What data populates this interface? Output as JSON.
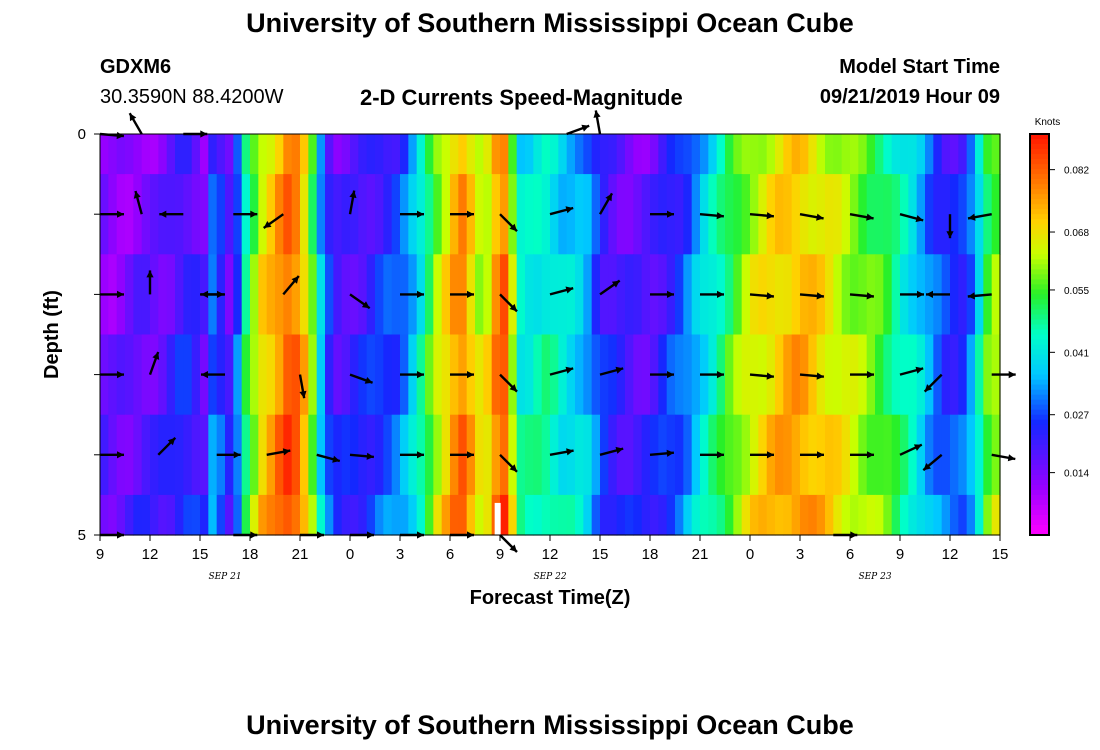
{
  "header": {
    "title": "University of Southern Mississippi Ocean Cube",
    "station_id": "GDXM6",
    "station_coords": "30.3590N 88.4200W",
    "plot_title": "2-D Currents Speed-Magnitude",
    "model_start_label": "Model Start Time",
    "model_start_value": "09/21/2019 Hour 09"
  },
  "footer": {
    "title": "University of Southern Mississippi Ocean Cube"
  },
  "chart_data": {
    "type": "heatmap",
    "title": "2-D Currents Speed-Magnitude",
    "xlabel": "Forecast Time(Z)",
    "ylabel": "Depth (ft)",
    "x_tick_labels": [
      "9",
      "12",
      "15",
      "18",
      "21",
      "0",
      "3",
      "6",
      "9",
      "12",
      "15",
      "18",
      "21",
      "0",
      "3",
      "6",
      "9",
      "12",
      "15"
    ],
    "x_range_hours": [
      0,
      54
    ],
    "x_tick_step_hours": 3,
    "date_labels": [
      {
        "text": "SEP 21",
        "hour": 7.5
      },
      {
        "text": "SEP 22",
        "hour": 27
      },
      {
        "text": "SEP 23",
        "hour": 46.5
      }
    ],
    "y_tick_labels": [
      "0",
      "5"
    ],
    "ylim": [
      0,
      5
    ],
    "colorbar": {
      "unit": "Knots",
      "min": 0.0,
      "max": 0.09,
      "tick_labels": [
        "0.082",
        "0.068",
        "0.055",
        "0.041",
        "0.027",
        "0.014"
      ],
      "tick_values": [
        0.082,
        0.068,
        0.055,
        0.041,
        0.027,
        0.014
      ]
    },
    "speed_profile": [
      {
        "hour": 0,
        "v": 0.016
      },
      {
        "hour": 0.5,
        "v": 0.013
      },
      {
        "hour": 1.5,
        "v": 0.014
      },
      {
        "hour": 2.5,
        "v": 0.017
      },
      {
        "hour": 3.5,
        "v": 0.016
      },
      {
        "hour": 4.5,
        "v": 0.02
      },
      {
        "hour": 5.0,
        "v": 0.024
      },
      {
        "hour": 6.0,
        "v": 0.019
      },
      {
        "hour": 6.5,
        "v": 0.014
      },
      {
        "hour": 6.8,
        "v": 0.033
      },
      {
        "hour": 7.0,
        "v": 0.039
      },
      {
        "hour": 7.3,
        "v": 0.022
      },
      {
        "hour": 7.7,
        "v": 0.017
      },
      {
        "hour": 8.3,
        "v": 0.03
      },
      {
        "hour": 8.7,
        "v": 0.048
      },
      {
        "hour": 9.2,
        "v": 0.058
      },
      {
        "hour": 9.7,
        "v": 0.068
      },
      {
        "hour": 10.5,
        "v": 0.074
      },
      {
        "hour": 11.0,
        "v": 0.08
      },
      {
        "hour": 11.5,
        "v": 0.084
      },
      {
        "hour": 12.0,
        "v": 0.076
      },
      {
        "hour": 12.5,
        "v": 0.066
      },
      {
        "hour": 13.0,
        "v": 0.048
      },
      {
        "hour": 13.4,
        "v": 0.03
      },
      {
        "hour": 13.8,
        "v": 0.024
      },
      {
        "hour": 14.3,
        "v": 0.019
      },
      {
        "hour": 15.0,
        "v": 0.02
      },
      {
        "hour": 16.0,
        "v": 0.022
      },
      {
        "hour": 17.0,
        "v": 0.026
      },
      {
        "hour": 18.0,
        "v": 0.028
      },
      {
        "hour": 19.0,
        "v": 0.04
      },
      {
        "hour": 19.5,
        "v": 0.048
      },
      {
        "hour": 20.0,
        "v": 0.058
      },
      {
        "hour": 20.5,
        "v": 0.066
      },
      {
        "hour": 21.0,
        "v": 0.07
      },
      {
        "hour": 21.5,
        "v": 0.08
      },
      {
        "hour": 22.0,
        "v": 0.076
      },
      {
        "hour": 22.5,
        "v": 0.066
      },
      {
        "hour": 23.0,
        "v": 0.062
      },
      {
        "hour": 23.5,
        "v": 0.07
      },
      {
        "hour": 24.0,
        "v": 0.084
      },
      {
        "hour": 24.5,
        "v": 0.079
      },
      {
        "hour": 25.0,
        "v": 0.045
      },
      {
        "hour": 25.5,
        "v": 0.042
      },
      {
        "hour": 26.0,
        "v": 0.044
      },
      {
        "hour": 27.0,
        "v": 0.046
      },
      {
        "hour": 27.5,
        "v": 0.041
      },
      {
        "hour": 28.0,
        "v": 0.04
      },
      {
        "hour": 29.0,
        "v": 0.037
      },
      {
        "hour": 29.5,
        "v": 0.032
      },
      {
        "hour": 30.0,
        "v": 0.024
      },
      {
        "hour": 31.0,
        "v": 0.02
      },
      {
        "hour": 32.0,
        "v": 0.018
      },
      {
        "hour": 33.0,
        "v": 0.018
      },
      {
        "hour": 34.0,
        "v": 0.024
      },
      {
        "hour": 35.0,
        "v": 0.028
      },
      {
        "hour": 36.0,
        "v": 0.038
      },
      {
        "hour": 37.0,
        "v": 0.046
      },
      {
        "hour": 38.0,
        "v": 0.056
      },
      {
        "hour": 39.0,
        "v": 0.064
      },
      {
        "hour": 40.0,
        "v": 0.068
      },
      {
        "hour": 41.0,
        "v": 0.072
      },
      {
        "hour": 42.0,
        "v": 0.074
      },
      {
        "hour": 43.0,
        "v": 0.07
      },
      {
        "hour": 44.0,
        "v": 0.066
      },
      {
        "hour": 45.0,
        "v": 0.062
      },
      {
        "hour": 46.0,
        "v": 0.058
      },
      {
        "hour": 47.0,
        "v": 0.054
      },
      {
        "hour": 48.0,
        "v": 0.046
      },
      {
        "hour": 49.0,
        "v": 0.04
      },
      {
        "hour": 50.0,
        "v": 0.03
      },
      {
        "hour": 51.0,
        "v": 0.024
      },
      {
        "hour": 52.0,
        "v": 0.026
      },
      {
        "hour": 53.0,
        "v": 0.048
      },
      {
        "hour": 53.5,
        "v": 0.062
      },
      {
        "hour": 54.0,
        "v": 0.058
      }
    ],
    "depth_rows": [
      0,
      1,
      2,
      3,
      4,
      5
    ],
    "arrows": [
      {
        "depth": 0,
        "hour": 0,
        "dir": 5
      },
      {
        "depth": 0,
        "hour": 2.5,
        "dir": 240
      },
      {
        "depth": 0,
        "hour": 5,
        "dir": 0
      },
      {
        "depth": 0,
        "hour": 28,
        "dir": 340
      },
      {
        "depth": 0,
        "hour": 30,
        "dir": 260
      },
      {
        "depth": 1,
        "hour": 0,
        "dir": 0
      },
      {
        "depth": 1,
        "hour": 2.5,
        "dir": 255
      },
      {
        "depth": 1,
        "hour": 5,
        "dir": 180
      },
      {
        "depth": 1,
        "hour": 8,
        "dir": 0
      },
      {
        "depth": 1,
        "hour": 11,
        "dir": 145
      },
      {
        "depth": 1,
        "hour": 15,
        "dir": 280
      },
      {
        "depth": 1,
        "hour": 18,
        "dir": 0
      },
      {
        "depth": 1,
        "hour": 21,
        "dir": 0
      },
      {
        "depth": 1,
        "hour": 24,
        "dir": 45
      },
      {
        "depth": 1,
        "hour": 27,
        "dir": 345
      },
      {
        "depth": 1,
        "hour": 30,
        "dir": 300
      },
      {
        "depth": 1,
        "hour": 33,
        "dir": 0
      },
      {
        "depth": 1,
        "hour": 36,
        "dir": 5
      },
      {
        "depth": 1,
        "hour": 39,
        "dir": 5
      },
      {
        "depth": 1,
        "hour": 42,
        "dir": 10
      },
      {
        "depth": 1,
        "hour": 45,
        "dir": 10
      },
      {
        "depth": 1,
        "hour": 48,
        "dir": 15
      },
      {
        "depth": 1,
        "hour": 51,
        "dir": 90
      },
      {
        "depth": 1,
        "hour": 53.5,
        "dir": 170
      },
      {
        "depth": 2,
        "hour": 0,
        "dir": 0
      },
      {
        "depth": 2,
        "hour": 3,
        "dir": 270
      },
      {
        "depth": 2,
        "hour": 6,
        "dir": 0
      },
      {
        "depth": 2,
        "hour": 7.5,
        "dir": 180
      },
      {
        "depth": 2,
        "hour": 11,
        "dir": 310
      },
      {
        "depth": 2,
        "hour": 15,
        "dir": 35
      },
      {
        "depth": 2,
        "hour": 18,
        "dir": 0
      },
      {
        "depth": 2,
        "hour": 21,
        "dir": 0
      },
      {
        "depth": 2,
        "hour": 24,
        "dir": 45
      },
      {
        "depth": 2,
        "hour": 27,
        "dir": 345
      },
      {
        "depth": 2,
        "hour": 30,
        "dir": 325
      },
      {
        "depth": 2,
        "hour": 33,
        "dir": 0
      },
      {
        "depth": 2,
        "hour": 36,
        "dir": 0
      },
      {
        "depth": 2,
        "hour": 39,
        "dir": 5
      },
      {
        "depth": 2,
        "hour": 42,
        "dir": 5
      },
      {
        "depth": 2,
        "hour": 45,
        "dir": 5
      },
      {
        "depth": 2,
        "hour": 48,
        "dir": 0
      },
      {
        "depth": 2,
        "hour": 51,
        "dir": 180
      },
      {
        "depth": 2,
        "hour": 53.5,
        "dir": 175
      },
      {
        "depth": 3,
        "hour": 0,
        "dir": 0
      },
      {
        "depth": 3,
        "hour": 3,
        "dir": 290
      },
      {
        "depth": 3,
        "hour": 7.5,
        "dir": 180
      },
      {
        "depth": 3,
        "hour": 12,
        "dir": 80
      },
      {
        "depth": 3,
        "hour": 15,
        "dir": 20
      },
      {
        "depth": 3,
        "hour": 18,
        "dir": 0
      },
      {
        "depth": 3,
        "hour": 21,
        "dir": 0
      },
      {
        "depth": 3,
        "hour": 24,
        "dir": 45
      },
      {
        "depth": 3,
        "hour": 27,
        "dir": 345
      },
      {
        "depth": 3,
        "hour": 30,
        "dir": 345
      },
      {
        "depth": 3,
        "hour": 33,
        "dir": 0
      },
      {
        "depth": 3,
        "hour": 36,
        "dir": 0
      },
      {
        "depth": 3,
        "hour": 39,
        "dir": 5
      },
      {
        "depth": 3,
        "hour": 42,
        "dir": 5
      },
      {
        "depth": 3,
        "hour": 45,
        "dir": 0
      },
      {
        "depth": 3,
        "hour": 48,
        "dir": 345
      },
      {
        "depth": 3,
        "hour": 50.5,
        "dir": 135
      },
      {
        "depth": 3,
        "hour": 53.5,
        "dir": 0
      },
      {
        "depth": 4,
        "hour": 0,
        "dir": 0
      },
      {
        "depth": 4,
        "hour": 3.5,
        "dir": 315
      },
      {
        "depth": 4,
        "hour": 7,
        "dir": 0
      },
      {
        "depth": 4,
        "hour": 10,
        "dir": 350
      },
      {
        "depth": 4,
        "hour": 13,
        "dir": 15
      },
      {
        "depth": 4,
        "hour": 15,
        "dir": 5
      },
      {
        "depth": 4,
        "hour": 18,
        "dir": 0
      },
      {
        "depth": 4,
        "hour": 21,
        "dir": 0
      },
      {
        "depth": 4,
        "hour": 24,
        "dir": 45
      },
      {
        "depth": 4,
        "hour": 27,
        "dir": 350
      },
      {
        "depth": 4,
        "hour": 30,
        "dir": 345
      },
      {
        "depth": 4,
        "hour": 33,
        "dir": 355
      },
      {
        "depth": 4,
        "hour": 36,
        "dir": 0
      },
      {
        "depth": 4,
        "hour": 39,
        "dir": 0
      },
      {
        "depth": 4,
        "hour": 42,
        "dir": 0
      },
      {
        "depth": 4,
        "hour": 45,
        "dir": 0
      },
      {
        "depth": 4,
        "hour": 48,
        "dir": 335
      },
      {
        "depth": 4,
        "hour": 50.5,
        "dir": 140
      },
      {
        "depth": 4,
        "hour": 53.5,
        "dir": 10
      },
      {
        "depth": 5,
        "hour": 0,
        "dir": 0
      },
      {
        "depth": 5,
        "hour": 8,
        "dir": 0
      },
      {
        "depth": 5,
        "hour": 12,
        "dir": 0
      },
      {
        "depth": 5,
        "hour": 15,
        "dir": 0
      },
      {
        "depth": 5,
        "hour": 18,
        "dir": 0
      },
      {
        "depth": 5,
        "hour": 21,
        "dir": 0
      },
      {
        "depth": 5,
        "hour": 24,
        "dir": 45
      },
      {
        "depth": 5,
        "hour": 44,
        "dir": 0
      }
    ],
    "grid": false
  }
}
